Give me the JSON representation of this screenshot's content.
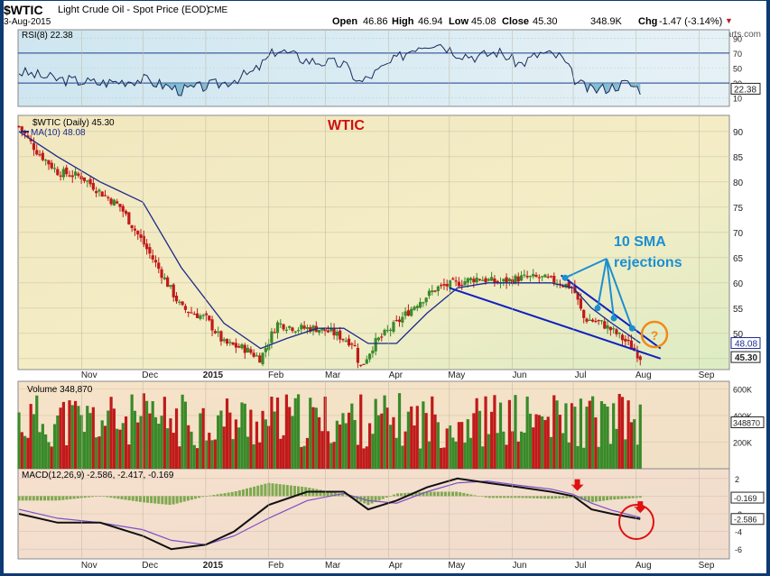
{
  "header": {
    "symbol": "$WTIC",
    "name": "Light Crude Oil - Spot Price (EOD)",
    "exchange": "CME",
    "date": "3-Aug-2015",
    "open_label": "Open",
    "open": "46.86",
    "high_label": "High",
    "high": "46.94",
    "low_label": "Low",
    "low": "45.08",
    "close_label": "Close",
    "close": "45.30",
    "volume": "348.9K",
    "chg_label": "Chg",
    "chg": "-1.47 (-3.14%)",
    "watermark": "© StockCharts.com"
  },
  "colors": {
    "up": "#3a8a2a",
    "down": "#c01a1a",
    "ma": "#1b2a8c",
    "trend": "#1020c0",
    "annot": "#1b8fd0",
    "title": "#d01010",
    "circle_orange": "#f08a1a",
    "circle_red": "#e01010"
  },
  "chart_data": [
    {
      "type": "line",
      "panel": "RSI",
      "legend": "RSI(8) 22.38",
      "ylim": [
        0,
        100
      ],
      "y_ticks": [
        "90",
        "70",
        "50",
        "30",
        "10"
      ],
      "reference_lines": [
        70,
        30
      ],
      "last_value": "22.38",
      "x": [
        "2014-10-01",
        "2014-10-20",
        "2014-11-10",
        "2014-12-01",
        "2014-12-20",
        "2015-01-10",
        "2015-01-25",
        "2015-02-05",
        "2015-02-20",
        "2015-03-10",
        "2015-03-18",
        "2015-04-01",
        "2015-04-15",
        "2015-04-25",
        "2015-05-05",
        "2015-05-15",
        "2015-05-25",
        "2015-06-05",
        "2015-06-15",
        "2015-06-25",
        "2015-07-03",
        "2015-07-10",
        "2015-07-20",
        "2015-07-27",
        "2015-08-03"
      ],
      "values": [
        45,
        35,
        30,
        35,
        20,
        30,
        45,
        75,
        60,
        55,
        30,
        55,
        80,
        85,
        70,
        65,
        72,
        55,
        70,
        65,
        30,
        20,
        25,
        30,
        22
      ]
    },
    {
      "type": "bar",
      "panel": "price",
      "title": "WTIC",
      "legend": [
        "$WTIC (Daily) 45.30",
        "MA(10) 48.08"
      ],
      "ylim": [
        43,
        93
      ],
      "y_ticks": [
        "90",
        "85",
        "80",
        "75",
        "70",
        "65",
        "60",
        "55",
        "50",
        "45"
      ],
      "x_ticks": [
        "Nov",
        "Dec",
        "2015",
        "Feb",
        "Mar",
        "Apr",
        "May",
        "Jun",
        "Jul",
        "Aug",
        "Sep"
      ],
      "x_tick_dates": [
        "2014-11-01",
        "2014-12-01",
        "2015-01-01",
        "2015-02-01",
        "2015-03-01",
        "2015-04-01",
        "2015-05-01",
        "2015-06-01",
        "2015-07-01",
        "2015-08-01",
        "2015-09-01"
      ],
      "series": [
        {
          "name": "$WTIC",
          "kind": "ohlc",
          "x": [
            "2014-10-01",
            "2014-10-10",
            "2014-10-20",
            "2014-11-01",
            "2014-11-10",
            "2014-11-20",
            "2014-12-01",
            "2014-12-10",
            "2014-12-20",
            "2015-01-01",
            "2015-01-10",
            "2015-01-20",
            "2015-01-28",
            "2015-02-05",
            "2015-02-15",
            "2015-02-25",
            "2015-03-05",
            "2015-03-15",
            "2015-03-18",
            "2015-03-25",
            "2015-04-05",
            "2015-04-15",
            "2015-04-25",
            "2015-05-05",
            "2015-05-15",
            "2015-05-25",
            "2015-06-05",
            "2015-06-15",
            "2015-06-25",
            "2015-07-01",
            "2015-07-06",
            "2015-07-15",
            "2015-07-22",
            "2015-07-28",
            "2015-08-03"
          ],
          "close": [
            91,
            86,
            82,
            81,
            78,
            75,
            68,
            62,
            55,
            53,
            48,
            47,
            45,
            52,
            51,
            51,
            50,
            48,
            43,
            48,
            52,
            56,
            59,
            60,
            61,
            60,
            61,
            61,
            60,
            59,
            53,
            52,
            50,
            48,
            45.3
          ]
        },
        {
          "name": "MA(10)",
          "kind": "line",
          "x": [
            "2014-10-01",
            "2014-10-20",
            "2014-11-10",
            "2014-12-01",
            "2014-12-20",
            "2015-01-10",
            "2015-01-28",
            "2015-02-10",
            "2015-02-25",
            "2015-03-10",
            "2015-03-22",
            "2015-04-05",
            "2015-04-20",
            "2015-05-05",
            "2015-05-20",
            "2015-06-05",
            "2015-06-20",
            "2015-07-01",
            "2015-07-10",
            "2015-07-20",
            "2015-08-03"
          ],
          "values": [
            90,
            85,
            80,
            76,
            63,
            52,
            47,
            49,
            51,
            51,
            48,
            48,
            54,
            59,
            60,
            60,
            60,
            59,
            55,
            52,
            48.08
          ]
        }
      ],
      "last_values": [
        "48.08",
        "45.30"
      ]
    },
    {
      "type": "bar",
      "panel": "volume",
      "legend": "Volume 348,870",
      "y_ticks": [
        "600K",
        "400K",
        "200K"
      ],
      "last_value": "348870",
      "ylim": [
        0,
        650
      ]
    },
    {
      "type": "line",
      "panel": "MACD",
      "legend": "MACD(12,26,9) -2.586, -2.417, -0.169",
      "y_ticks": [
        "2",
        "0",
        "-2",
        "-4",
        "-6"
      ],
      "last_values": [
        "-0.169",
        "-2.586"
      ],
      "ylim": [
        -7,
        3
      ],
      "series": [
        {
          "name": "MACD",
          "x": [
            "2014-10-01",
            "2014-10-20",
            "2014-11-10",
            "2014-12-01",
            "2014-12-15",
            "2015-01-01",
            "2015-01-15",
            "2015-02-01",
            "2015-02-20",
            "2015-03-10",
            "2015-03-22",
            "2015-04-05",
            "2015-04-20",
            "2015-05-05",
            "2015-05-20",
            "2015-06-05",
            "2015-06-20",
            "2015-07-01",
            "2015-07-10",
            "2015-07-20",
            "2015-08-03"
          ],
          "values": [
            -2,
            -3,
            -3,
            -4.5,
            -6,
            -5.5,
            -4,
            -1,
            0.5,
            0.5,
            -1.5,
            -0.5,
            1,
            2,
            1.5,
            1,
            0.5,
            0,
            -1.5,
            -2,
            -2.586
          ]
        },
        {
          "name": "Signal",
          "x": [
            "2014-10-01",
            "2014-10-20",
            "2014-11-10",
            "2014-12-01",
            "2014-12-15",
            "2015-01-01",
            "2015-01-15",
            "2015-02-01",
            "2015-02-20",
            "2015-03-10",
            "2015-03-22",
            "2015-04-05",
            "2015-04-20",
            "2015-05-05",
            "2015-05-20",
            "2015-06-05",
            "2015-06-20",
            "2015-07-01",
            "2015-07-10",
            "2015-07-20",
            "2015-08-03"
          ],
          "values": [
            -1.5,
            -2.5,
            -3,
            -3.8,
            -5,
            -5.5,
            -4.5,
            -2.5,
            -0.5,
            0.3,
            -0.5,
            -0.8,
            0.5,
            1.5,
            1.7,
            1.2,
            0.8,
            0.2,
            -0.8,
            -1.6,
            -2.417
          ]
        }
      ]
    }
  ],
  "annotations": {
    "sma_label_line1": "10 SMA",
    "sma_label_line2": "rejections",
    "question": "?"
  }
}
